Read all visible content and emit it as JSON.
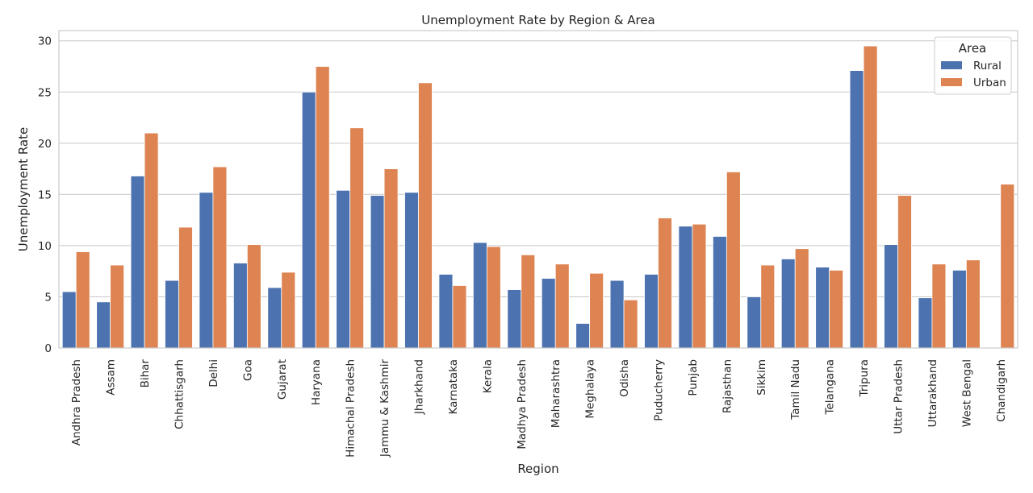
{
  "chart_data": {
    "type": "bar",
    "title": "Unemployment Rate by Region & Area",
    "xlabel": "Region",
    "ylabel": "Unemployment Rate",
    "ylim": [
      0,
      31
    ],
    "yticks": [
      0,
      5,
      10,
      15,
      20,
      25,
      30
    ],
    "grid": true,
    "legend": {
      "title": "Area",
      "placement": "top-right"
    },
    "categories": [
      "Andhra Pradesh",
      "Assam",
      "Bihar",
      "Chhattisgarh",
      "Delhi",
      "Goa",
      "Gujarat",
      "Haryana",
      "Himachal Pradesh",
      "Jammu & Kashmir",
      "Jharkhand",
      "Karnataka",
      "Kerala",
      "Madhya Pradesh",
      "Maharashtra",
      "Meghalaya",
      "Odisha",
      "Puducherry",
      "Punjab",
      "Rajasthan",
      "Sikkim",
      "Tamil Nadu",
      "Telangana",
      "Tripura",
      "Uttar Pradesh",
      "Uttarakhand",
      "West Bengal",
      "Chandigarh"
    ],
    "series": [
      {
        "name": "Rural",
        "color": "#4c72b0",
        "values": [
          5.5,
          4.5,
          16.8,
          6.6,
          15.2,
          8.3,
          5.9,
          25.0,
          15.4,
          14.9,
          15.2,
          7.2,
          10.3,
          5.7,
          6.8,
          2.4,
          6.6,
          7.2,
          11.9,
          10.9,
          5.0,
          8.7,
          7.9,
          27.1,
          10.1,
          4.9,
          7.6,
          null
        ]
      },
      {
        "name": "Urban",
        "color": "#dd8452",
        "values": [
          9.4,
          8.1,
          21.0,
          11.8,
          17.7,
          10.1,
          7.4,
          27.5,
          21.5,
          17.5,
          25.9,
          6.1,
          9.9,
          9.1,
          8.2,
          7.3,
          4.7,
          12.7,
          12.1,
          17.2,
          8.1,
          9.7,
          7.6,
          29.5,
          14.9,
          8.2,
          8.6,
          16.0
        ]
      }
    ]
  }
}
